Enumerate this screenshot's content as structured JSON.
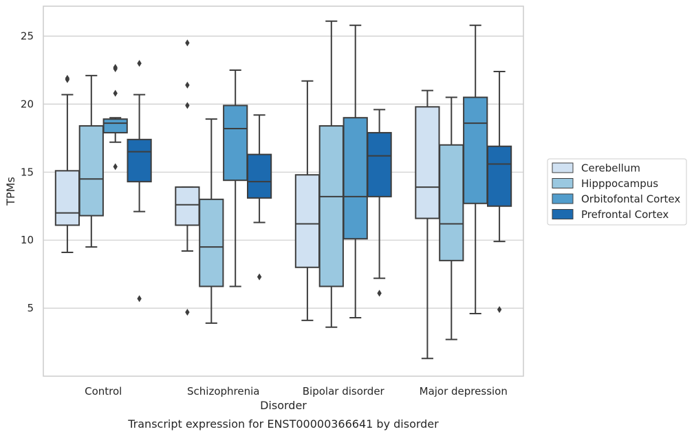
{
  "chart_data": {
    "type": "box",
    "caption": "Transcript expression for ENST00000366641 by disorder",
    "xlabel": "Disorder",
    "ylabel": "TPMs",
    "ylim": [
      0,
      27.2
    ],
    "yticks": [
      5,
      10,
      15,
      20,
      25
    ],
    "grid": true,
    "legend_position": "right",
    "categories": [
      "Control",
      "Schizophrenia",
      "Bipolar disorder",
      "Major depression"
    ],
    "series": [
      {
        "name": "Cerebellum",
        "color": "#d0e1f2",
        "boxes": [
          {
            "whisker_low": 9.1,
            "q1": 11.1,
            "median": 12.0,
            "q3": 15.1,
            "whisker_high": 20.7,
            "outliers": [
              21.9,
              21.8
            ]
          },
          {
            "whisker_low": 9.2,
            "q1": 11.1,
            "median": 12.6,
            "q3": 13.9,
            "whisker_high": 13.9,
            "outliers": [
              24.5,
              21.4,
              19.9,
              4.7
            ]
          },
          {
            "whisker_low": 4.1,
            "q1": 8.0,
            "median": 11.2,
            "q3": 14.8,
            "whisker_high": 21.7,
            "outliers": []
          },
          {
            "whisker_low": 1.3,
            "q1": 11.6,
            "median": 13.9,
            "q3": 19.8,
            "whisker_high": 21.0,
            "outliers": []
          }
        ]
      },
      {
        "name": "Hipppocampus",
        "color": "#9ac8e0",
        "boxes": [
          {
            "whisker_low": 9.5,
            "q1": 11.8,
            "median": 14.5,
            "q3": 18.4,
            "whisker_high": 22.1,
            "outliers": []
          },
          {
            "whisker_low": 3.9,
            "q1": 6.6,
            "median": 9.5,
            "q3": 13.0,
            "whisker_high": 18.9,
            "outliers": []
          },
          {
            "whisker_low": 3.6,
            "q1": 6.6,
            "median": 13.2,
            "q3": 18.4,
            "whisker_high": 26.1,
            "outliers": []
          },
          {
            "whisker_low": 2.7,
            "q1": 8.5,
            "median": 11.2,
            "q3": 17.0,
            "whisker_high": 20.5,
            "outliers": []
          }
        ]
      },
      {
        "name": "Orbitofontal Cortex",
        "color": "#529dcc",
        "boxes": [
          {
            "whisker_low": 17.2,
            "q1": 17.9,
            "median": 18.6,
            "q3": 18.9,
            "whisker_high": 19.0,
            "outliers": [
              22.7,
              22.6,
              20.8,
              15.4
            ]
          },
          {
            "whisker_low": 6.6,
            "q1": 14.4,
            "median": 18.2,
            "q3": 19.9,
            "whisker_high": 22.5,
            "outliers": []
          },
          {
            "whisker_low": 4.3,
            "q1": 10.1,
            "median": 13.2,
            "q3": 19.0,
            "whisker_high": 25.8,
            "outliers": []
          },
          {
            "whisker_low": 4.6,
            "q1": 12.7,
            "median": 18.6,
            "q3": 20.5,
            "whisker_high": 25.8,
            "outliers": []
          }
        ]
      },
      {
        "name": "Prefrontal Cortex",
        "color": "#1c6aaf",
        "boxes": [
          {
            "whisker_low": 12.1,
            "q1": 14.3,
            "median": 16.5,
            "q3": 17.4,
            "whisker_high": 20.7,
            "outliers": [
              23.0,
              5.7
            ]
          },
          {
            "whisker_low": 11.3,
            "q1": 13.1,
            "median": 14.3,
            "q3": 16.3,
            "whisker_high": 19.2,
            "outliers": [
              7.3
            ]
          },
          {
            "whisker_low": 7.2,
            "q1": 13.2,
            "median": 16.2,
            "q3": 17.9,
            "whisker_high": 19.6,
            "outliers": [
              6.1
            ]
          },
          {
            "whisker_low": 9.9,
            "q1": 12.5,
            "median": 15.6,
            "q3": 16.9,
            "whisker_high": 22.4,
            "outliers": [
              4.9
            ]
          }
        ]
      }
    ]
  }
}
